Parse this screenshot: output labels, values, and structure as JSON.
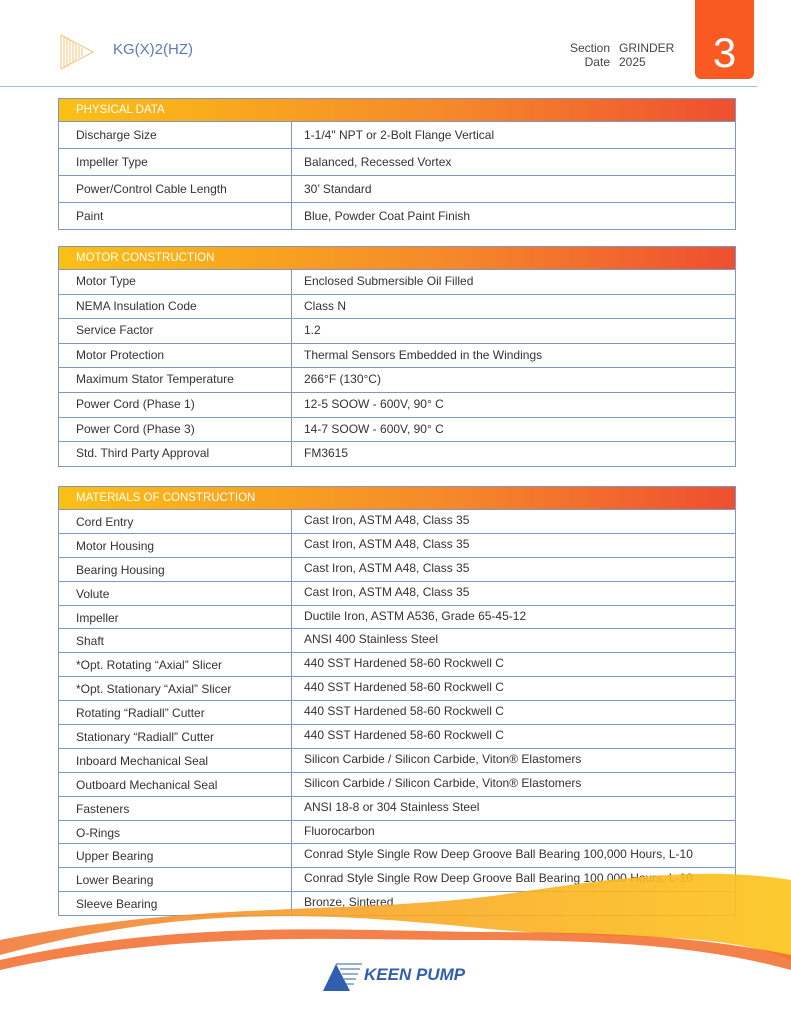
{
  "header": {
    "model": "KG(X)2(HZ)",
    "section_label": "Section",
    "section_value": "GRINDER",
    "date_label": "Date",
    "date_value": "2025",
    "section_number": "3"
  },
  "tables": [
    {
      "title": "PHYSICAL DATA",
      "rows": [
        [
          "Discharge Size",
          "1-1/4\" NPT or 2-Bolt Flange Vertical"
        ],
        [
          "Impeller Type",
          "Balanced, Recessed Vortex"
        ],
        [
          "Power/Control Cable Length",
          "30’ Standard"
        ],
        [
          "Paint",
          "Blue, Powder Coat Paint Finish"
        ]
      ]
    },
    {
      "title": "MOTOR CONSTRUCTION",
      "rows": [
        [
          "Motor Type",
          "Enclosed Submersible Oil Filled"
        ],
        [
          "NEMA Insulation Code",
          "Class N"
        ],
        [
          "Service Factor",
          "1.2"
        ],
        [
          "Motor Protection",
          "Thermal Sensors Embedded in the Windings"
        ],
        [
          "Maximum Stator Temperature",
          "266°F (130°C)"
        ],
        [
          "Power Cord (Phase 1)",
          "12-5 SOOW - 600V, 90° C"
        ],
        [
          "Power Cord (Phase 3)",
          "14-7 SOOW - 600V, 90° C"
        ],
        [
          "Std. Third Party Approval",
          "FM3615"
        ]
      ]
    },
    {
      "title": "MATERIALS OF CONSTRUCTION",
      "rows": [
        [
          "Cord Entry",
          "Cast Iron, ASTM A48, Class 35"
        ],
        [
          "Motor Housing",
          "Cast Iron, ASTM A48, Class 35"
        ],
        [
          "Bearing Housing",
          "Cast Iron, ASTM A48, Class 35"
        ],
        [
          "Volute",
          "Cast Iron, ASTM A48, Class 35"
        ],
        [
          "Impeller",
          "Ductile Iron, ASTM A536, Grade 65-45-12"
        ],
        [
          "Shaft",
          "ANSI 400 Stainless Steel"
        ],
        [
          "*Opt. Rotating “Axial” Slicer",
          "440 SST Hardened 58-60 Rockwell C"
        ],
        [
          "*Opt. Stationary “Axial” Slicer",
          "440 SST Hardened 58-60 Rockwell C"
        ],
        [
          "Rotating “Radiall” Cutter",
          "440 SST Hardened 58-60 Rockwell C"
        ],
        [
          "Stationary “Radiall” Cutter",
          "440 SST Hardened 58-60 Rockwell C"
        ],
        [
          "Inboard Mechanical Seal",
          "Silicon Carbide / Silicon Carbide, Viton® Elastomers"
        ],
        [
          "Outboard Mechanical Seal",
          "Silicon Carbide / Silicon Carbide, Viton® Elastomers"
        ],
        [
          "Fasteners",
          "ANSI 18-8 or 304 Stainless Steel"
        ],
        [
          "O-Rings",
          "Fluorocarbon"
        ],
        [
          "Upper Bearing",
          "Conrad Style Single Row Deep Groove Ball Bearing 100,000 Hours, L-10"
        ],
        [
          "Lower Bearing",
          "Conrad Style Single Row Deep Groove Ball Bearing 100,000 Hours, L-10"
        ],
        [
          "Sleeve Bearing",
          "Bronze, Sintered"
        ]
      ]
    }
  ],
  "footer": {
    "brand": "KEEN PUMP"
  },
  "colors": {
    "accent": "#f85a22",
    "brand": "#2f5fae",
    "rule": "#8fc9d3",
    "border": "#8098c0"
  }
}
